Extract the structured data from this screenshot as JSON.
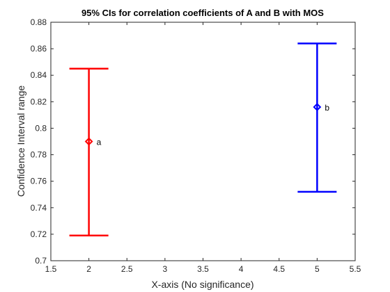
{
  "chart_data": {
    "type": "errorbar",
    "title": "95% CIs for correlation coefficients of A and B with MOS",
    "xlabel": "X-axis (No significance)",
    "ylabel": "Confidence Interval range",
    "xlim": [
      1.5,
      5.5
    ],
    "ylim": [
      0.7,
      0.88
    ],
    "xticks": [
      1.5,
      2,
      2.5,
      3,
      3.5,
      4,
      4.5,
      5,
      5.5
    ],
    "xtick_labels": [
      "1.5",
      "2",
      "2.5",
      "3",
      "3.5",
      "4",
      "4.5",
      "5",
      "5.5"
    ],
    "yticks": [
      0.7,
      0.72,
      0.74,
      0.76,
      0.78,
      0.8,
      0.82,
      0.84,
      0.86,
      0.88
    ],
    "ytick_labels": [
      "0.7",
      "0.72",
      "0.74",
      "0.76",
      "0.78",
      "0.8",
      "0.82",
      "0.84",
      "0.86",
      "0.88"
    ],
    "grid": false,
    "series": [
      {
        "label": "a",
        "x": 2,
        "y": 0.79,
        "lower": 0.719,
        "upper": 0.845,
        "color": "#ff0000"
      },
      {
        "label": "b",
        "x": 5,
        "y": 0.816,
        "lower": 0.752,
        "upper": 0.864,
        "color": "#0000ff"
      }
    ]
  }
}
